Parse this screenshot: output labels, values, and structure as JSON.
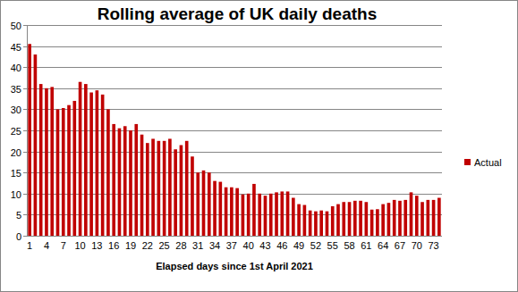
{
  "chart_data": {
    "type": "bar",
    "title": "Rolling average of UK daily deaths",
    "x_label": "Elapsed days since 1st April 2021",
    "categories": [
      "1",
      null,
      null,
      "4",
      null,
      null,
      "7",
      null,
      null,
      "10",
      null,
      null,
      "13",
      null,
      null,
      "16",
      null,
      null,
      "19",
      null,
      null,
      "22",
      null,
      null,
      "25",
      null,
      null,
      "28",
      null,
      null,
      "31",
      null,
      null,
      "34",
      null,
      null,
      "37",
      null,
      null,
      "40",
      null,
      null,
      "43",
      null,
      null,
      "46",
      null,
      null,
      "49",
      null,
      null,
      "52",
      null,
      null,
      "55",
      null,
      null,
      "58",
      null,
      null,
      "61",
      null,
      null,
      "64",
      null,
      null,
      "67",
      null,
      null,
      "70",
      null,
      null,
      "73",
      null
    ],
    "series": [
      {
        "name": "Actual",
        "color": "#c00000",
        "values": [
          45.5,
          43,
          36,
          35,
          35.3,
          30,
          30.3,
          31,
          32,
          36.5,
          36,
          34,
          34.5,
          33.5,
          30,
          26.5,
          25.5,
          26,
          25,
          26.5,
          24,
          22,
          23,
          22.5,
          22.5,
          23,
          20.5,
          21.5,
          22.5,
          18.8,
          15,
          15.5,
          15,
          13,
          12.8,
          11.5,
          11.5,
          11.3,
          9.8,
          10,
          12.3,
          10,
          9.5,
          10,
          10.3,
          10.5,
          10.5,
          9,
          7.5,
          7.3,
          6,
          5.8,
          6,
          5.8,
          7,
          7.5,
          8,
          8,
          8.3,
          8.3,
          8,
          6.2,
          6.3,
          7.5,
          7.8,
          8.5,
          8.3,
          8.5,
          10.3,
          9.5,
          8,
          8.5,
          8.5,
          9
        ]
      }
    ],
    "ylim": [
      0,
      50
    ],
    "yticks": [
      0,
      5,
      10,
      15,
      20,
      25,
      30,
      35,
      40,
      45,
      50
    ],
    "grid": true,
    "legend": "right"
  }
}
